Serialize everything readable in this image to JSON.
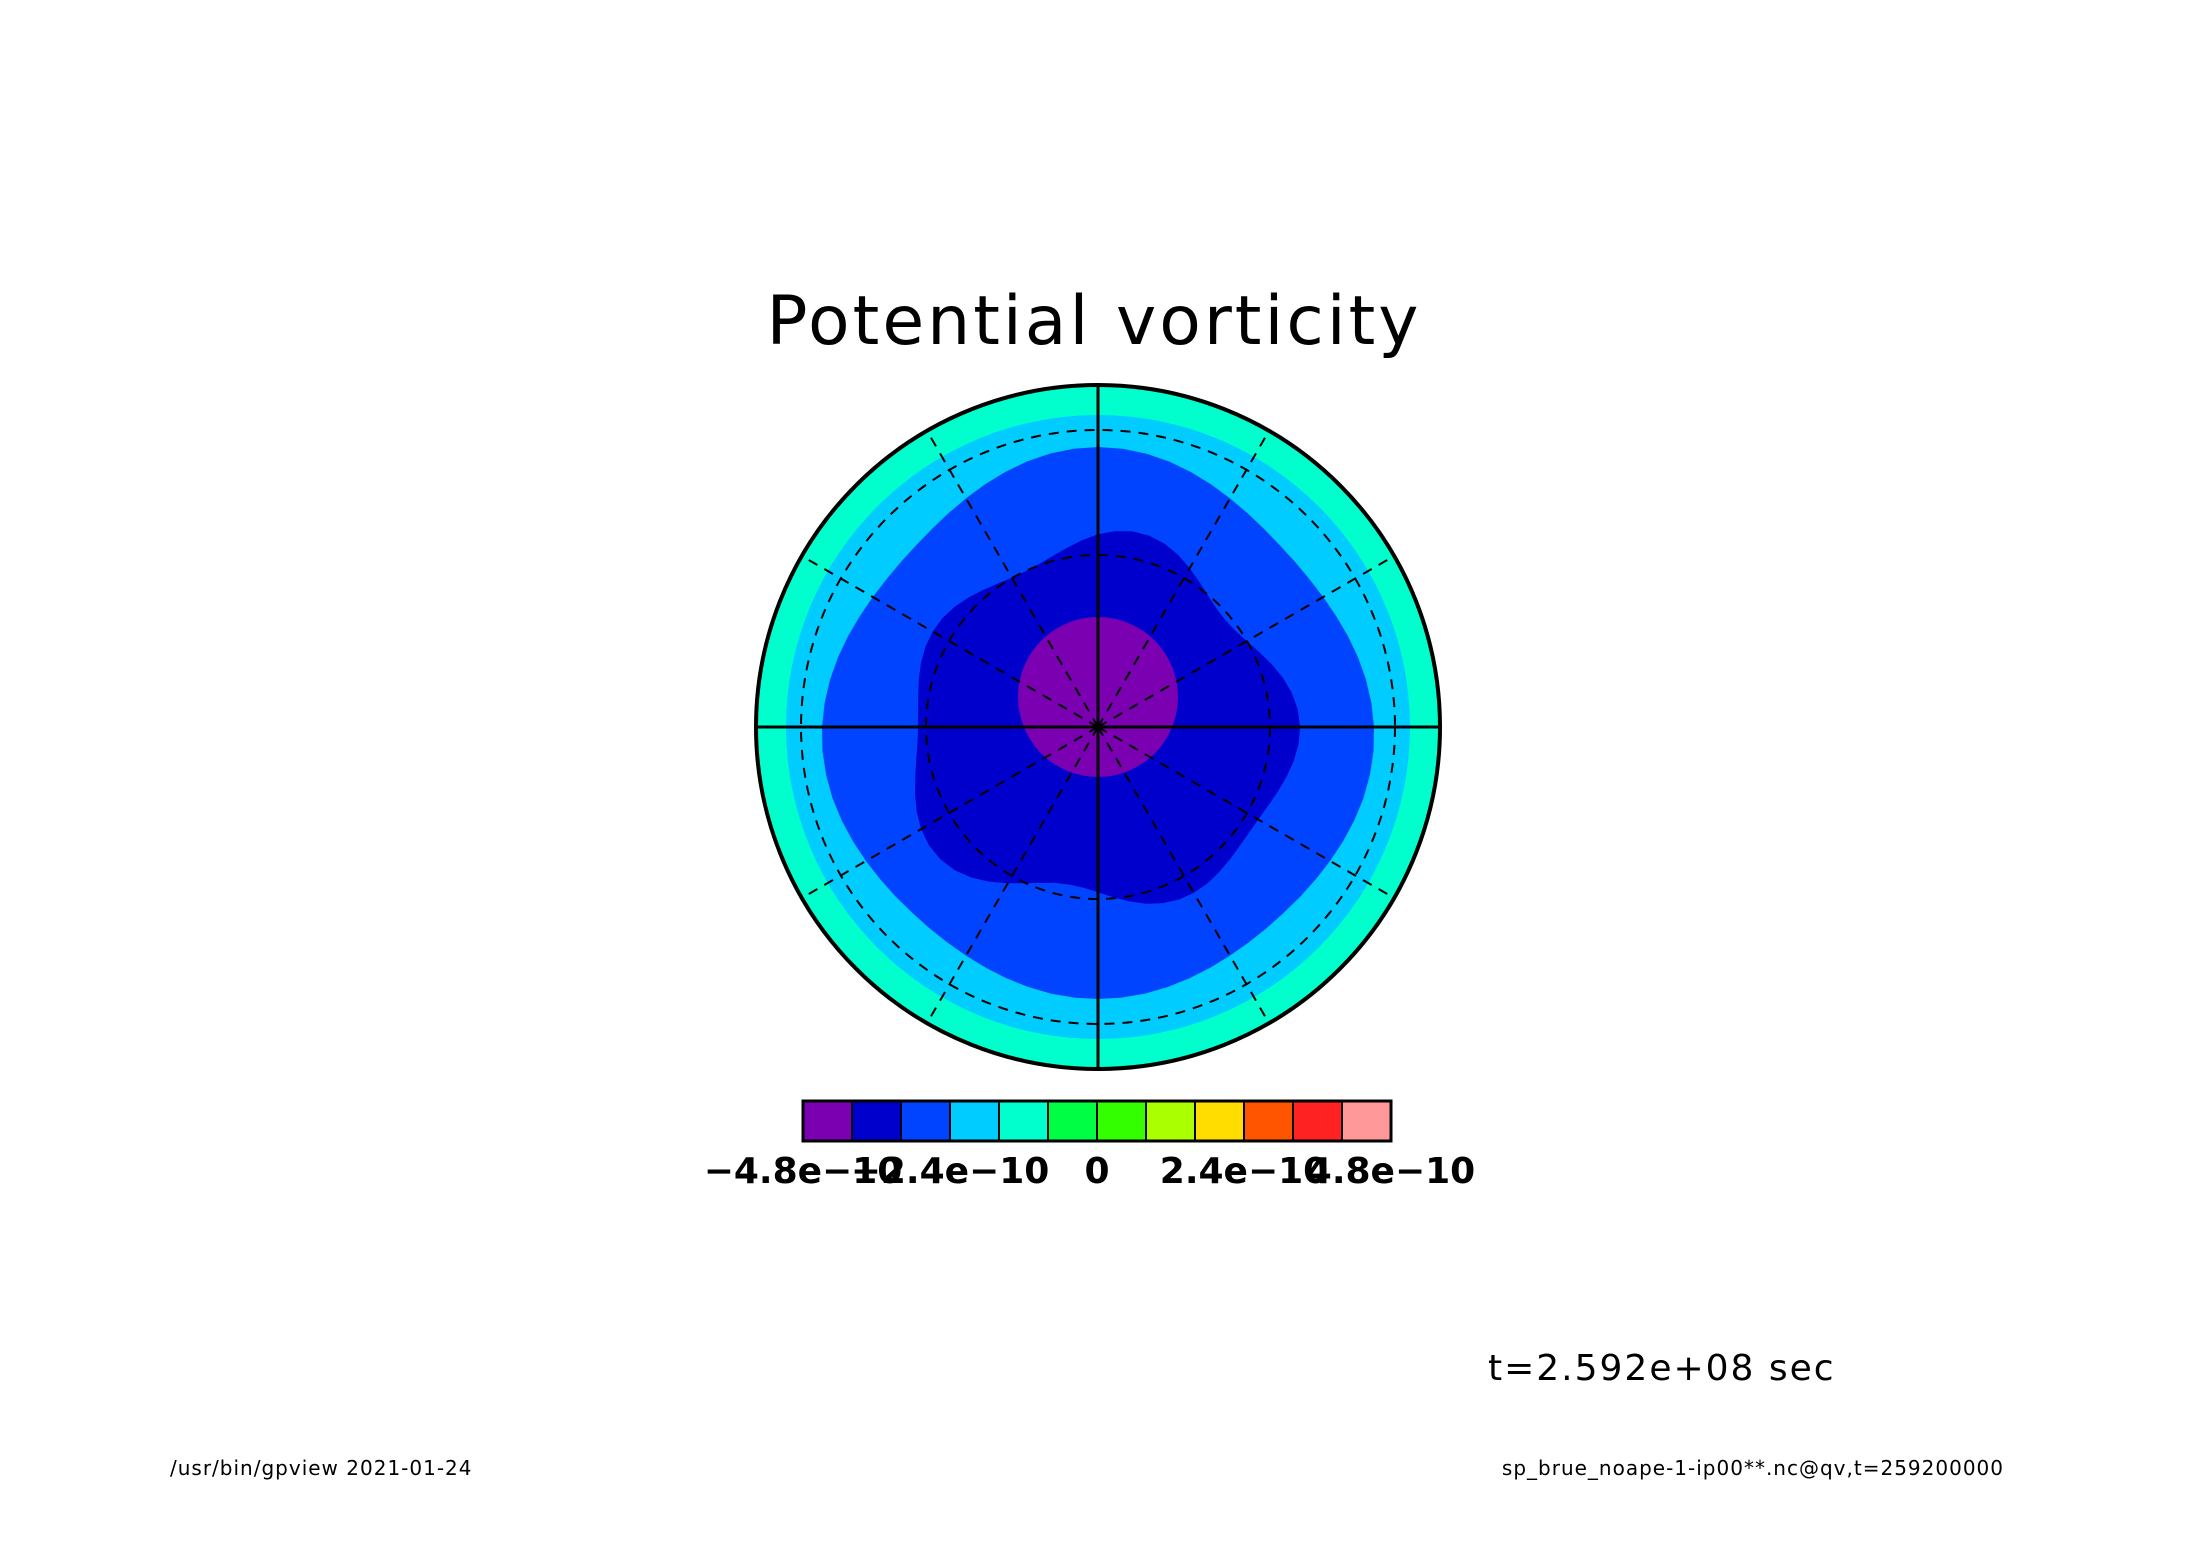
{
  "title": "Potential vorticity",
  "time_label": "t=2.592e+08 sec",
  "footer": {
    "left": "/usr/bin/gpview  2021-01-24",
    "right": "sp_brue_noape-1-ip00**.nc@qv,t=259200000"
  },
  "chart_data": {
    "type": "heatmap",
    "projection": "polar stereographic",
    "title": "Potential vorticity",
    "contour_levels": [
      -4.8e-10,
      -4e-10,
      -3.2e-10,
      -2.4e-10,
      -1.6e-10,
      -8e-11,
      0,
      8e-11,
      1.6e-10,
      2.4e-10,
      3.2e-10,
      4e-10,
      4.8e-10
    ],
    "colorbar": {
      "colors": [
        "#7b00b2",
        "#0000cc",
        "#0044ff",
        "#00ccff",
        "#00ffcc",
        "#00ff44",
        "#33ff00",
        "#aaff00",
        "#ffdd00",
        "#ff5500",
        "#ff2222",
        "#ff9999"
      ],
      "tick_labels": [
        "-4.8e-10",
        "-2.4e-10",
        "0",
        "2.4e-10",
        "4.8e-10"
      ]
    },
    "filled_regions": [
      {
        "color": "#00ffcc",
        "range": "0 to 0.8e-10, outer ring"
      },
      {
        "color": "#00ccff",
        "range": "ring"
      },
      {
        "color": "#0044ff",
        "range": "ring"
      },
      {
        "color": "#0000cc",
        "range": "inner irregular disk"
      },
      {
        "color": "#7b00b2",
        "range": "pole center, minimum"
      }
    ],
    "grid": true,
    "legend": "bottom"
  }
}
